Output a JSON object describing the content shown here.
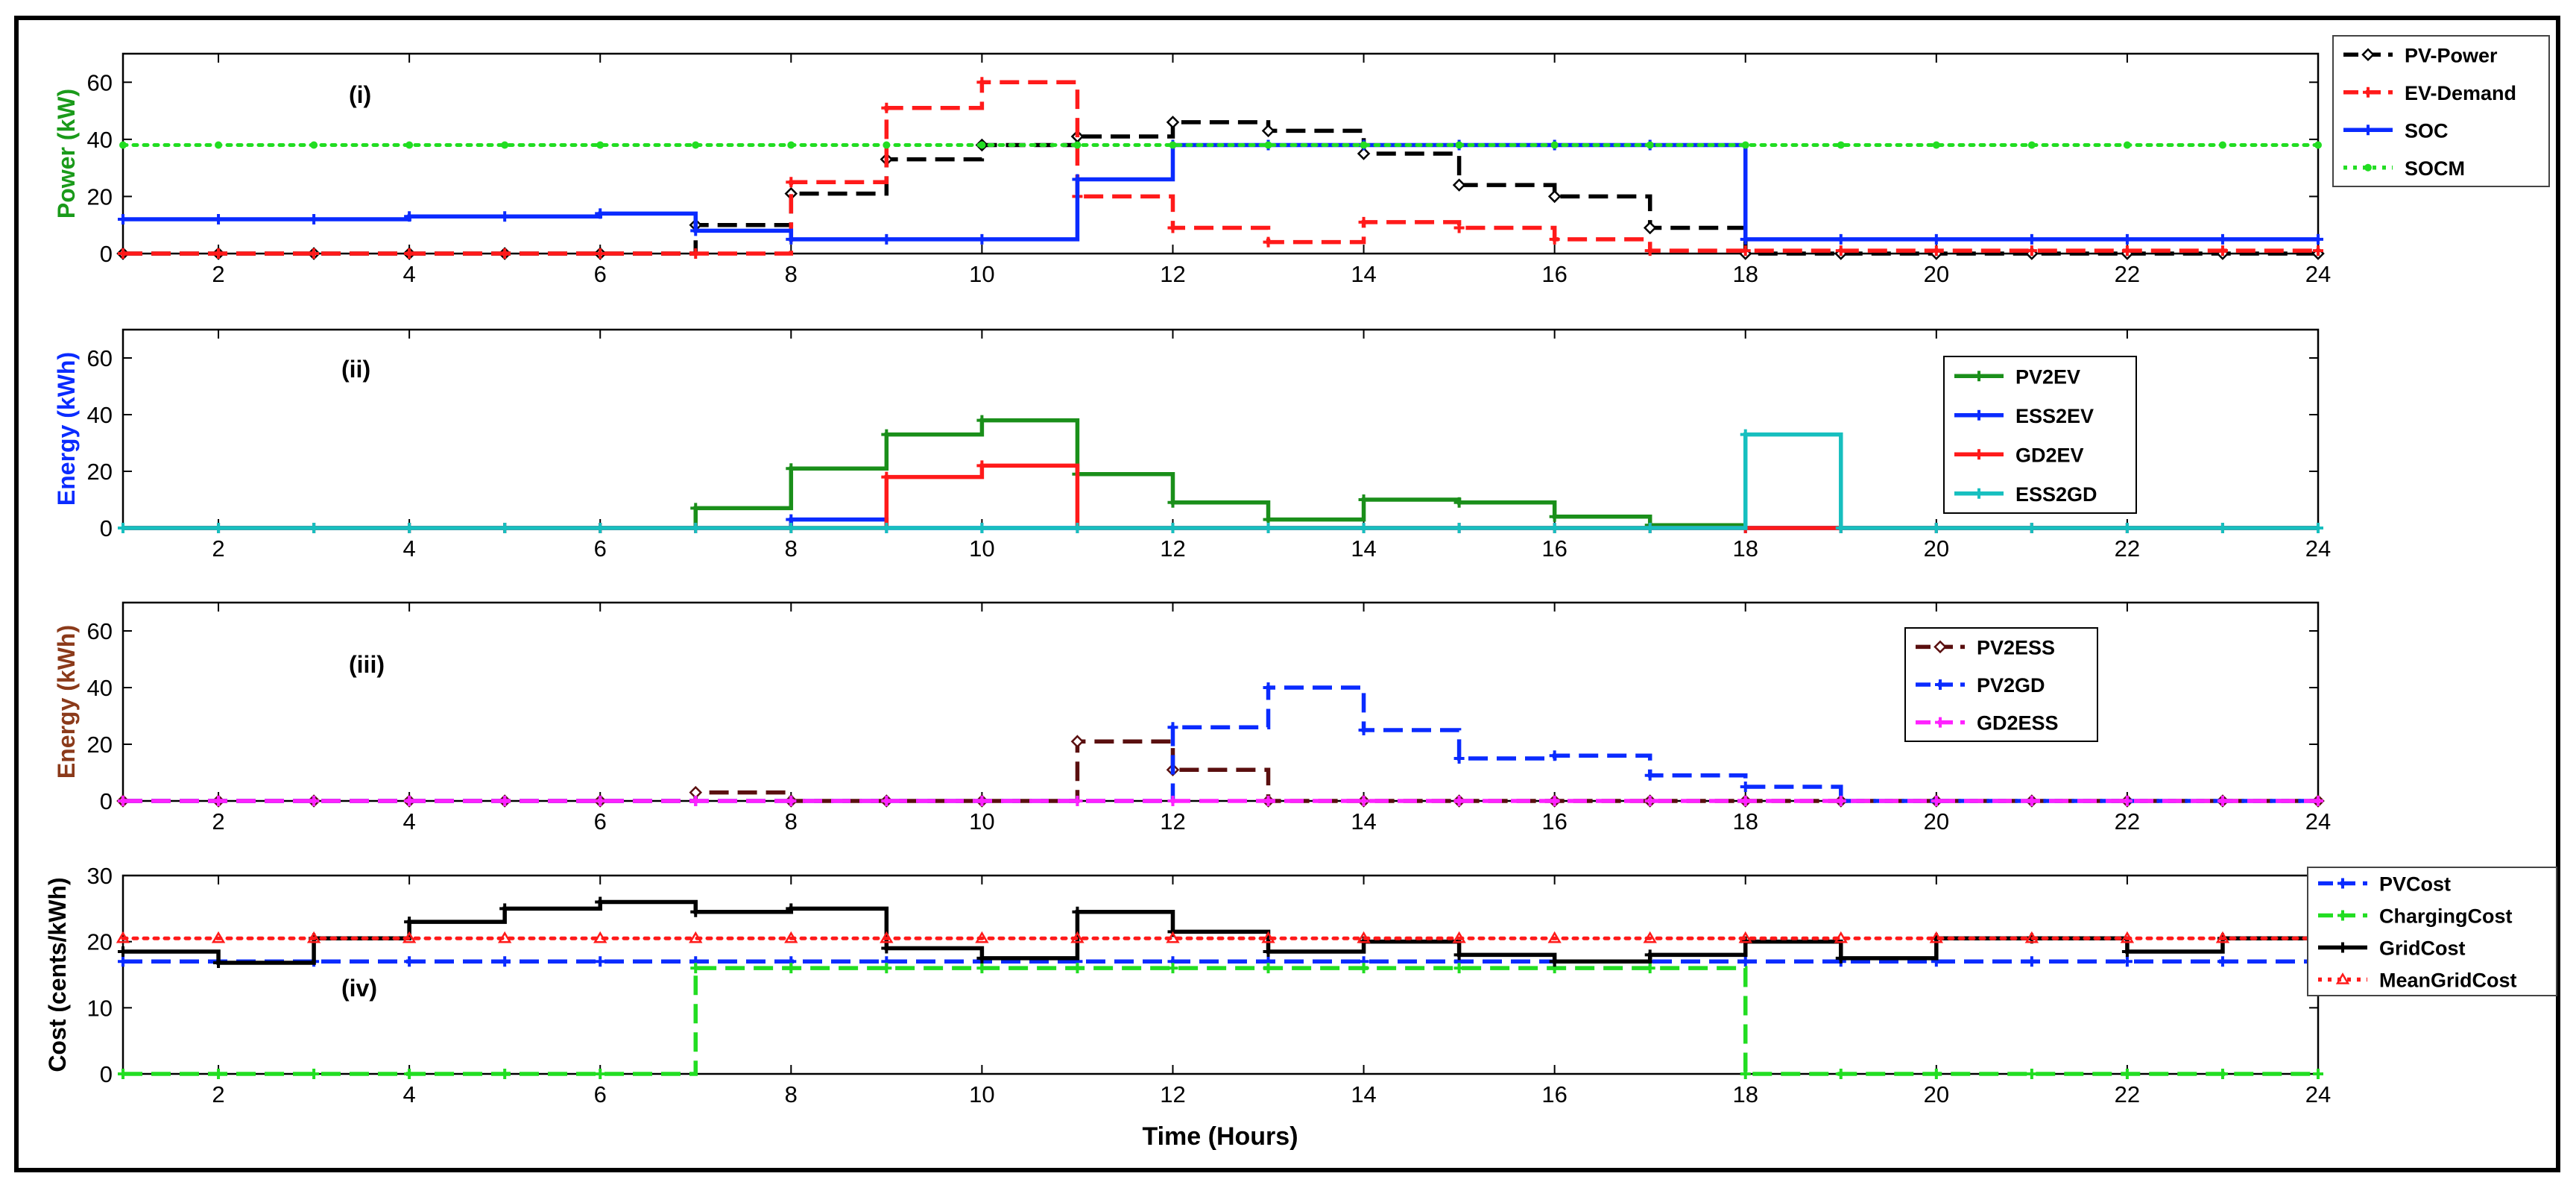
{
  "chart_data": [
    {
      "id": "p1",
      "type": "line",
      "step": true,
      "panel_label": "(i)",
      "ylabel": "Power (kW)",
      "ylabel_color": "#1a9a1a",
      "ylim": [
        0,
        70
      ],
      "yticks": [
        0,
        20,
        40,
        60
      ],
      "xlim": [
        1,
        24
      ],
      "xticks": [
        2,
        4,
        6,
        8,
        10,
        12,
        14,
        16,
        18,
        20,
        22,
        24
      ],
      "legend_position": "top-right-outside",
      "series": [
        {
          "name": "PV-Power",
          "color": "#000000",
          "dash": "dash",
          "marker": "diamond",
          "values": [
            0,
            0,
            0,
            0,
            0,
            0,
            10,
            21,
            33,
            38,
            41,
            46,
            43,
            35,
            24,
            20,
            9,
            0,
            0,
            0,
            0,
            0,
            0,
            0
          ]
        },
        {
          "name": "EV-Demand",
          "color": "#ff1a1a",
          "dash": "dash",
          "marker": "plus",
          "values": [
            0,
            0,
            0,
            0,
            0,
            0,
            0,
            25,
            51,
            60,
            20,
            9,
            4,
            11,
            9,
            5,
            1,
            1,
            1,
            1,
            1,
            1,
            1,
            1
          ]
        },
        {
          "name": "SOC",
          "color": "#0a2bff",
          "dash": "solid",
          "marker": "plus",
          "values": [
            12,
            12,
            12,
            13,
            13,
            14,
            8,
            5,
            5,
            5,
            26,
            38,
            38,
            38,
            38,
            38,
            38,
            5,
            5,
            5,
            5,
            5,
            5,
            5
          ]
        },
        {
          "name": "SOCM",
          "color": "#22dd22",
          "dash": "dot",
          "marker": "dot",
          "values": [
            38,
            38,
            38,
            38,
            38,
            38,
            38,
            38,
            38,
            38,
            38,
            38,
            38,
            38,
            38,
            38,
            38,
            38,
            38,
            38,
            38,
            38,
            38,
            38
          ]
        }
      ]
    },
    {
      "id": "p2",
      "type": "line",
      "step": true,
      "panel_label": "(ii)",
      "ylabel": "Energy (kWh)",
      "ylabel_color": "#0a2bff",
      "ylim": [
        0,
        70
      ],
      "yticks": [
        0,
        20,
        40,
        60
      ],
      "xlim": [
        1,
        24
      ],
      "xticks": [
        2,
        4,
        6,
        8,
        10,
        12,
        14,
        16,
        18,
        20,
        22,
        24
      ],
      "legend_position": "upper-right-inside",
      "series": [
        {
          "name": "PV2EV",
          "color": "#1a8f1a",
          "dash": "solid",
          "marker": "plus",
          "values": [
            0,
            0,
            0,
            0,
            0,
            0,
            7,
            21,
            33,
            38,
            19,
            9,
            3,
            10,
            9,
            4,
            1,
            0,
            0,
            0,
            0,
            0,
            0,
            0
          ]
        },
        {
          "name": "ESS2EV",
          "color": "#0a2bff",
          "dash": "solid",
          "marker": "plus",
          "values": [
            0,
            0,
            0,
            0,
            0,
            0,
            0,
            3,
            0,
            0,
            0,
            0,
            0,
            0,
            0,
            0,
            0,
            0,
            0,
            0,
            0,
            0,
            0,
            0
          ]
        },
        {
          "name": "GD2EV",
          "color": "#ff1a1a",
          "dash": "solid",
          "marker": "plus",
          "values": [
            0,
            0,
            0,
            0,
            0,
            0,
            0,
            0,
            18,
            22,
            0,
            0,
            0,
            0,
            0,
            0,
            0,
            0,
            0,
            0,
            0,
            0,
            0,
            0
          ]
        },
        {
          "name": "ESS2GD",
          "color": "#17bfbf",
          "dash": "solid",
          "marker": "plus",
          "values": [
            0,
            0,
            0,
            0,
            0,
            0,
            0,
            0,
            0,
            0,
            0,
            0,
            0,
            0,
            0,
            0,
            0,
            33,
            0,
            0,
            0,
            0,
            0,
            0
          ]
        }
      ]
    },
    {
      "id": "p3",
      "type": "line",
      "step": true,
      "panel_label": "(iii)",
      "ylabel": "Energy (kWh)",
      "ylabel_color": "#8b3a1a",
      "ylim": [
        0,
        70
      ],
      "yticks": [
        0,
        20,
        40,
        60
      ],
      "xlim": [
        1,
        24
      ],
      "xticks": [
        2,
        4,
        6,
        8,
        10,
        12,
        14,
        16,
        18,
        20,
        22,
        24
      ],
      "legend_position": "upper-right-inside",
      "series": [
        {
          "name": "PV2ESS",
          "color": "#5a0f0f",
          "dash": "dash",
          "marker": "diamond",
          "values": [
            0,
            0,
            0,
            0,
            0,
            0,
            3,
            0,
            0,
            0,
            21,
            11,
            0,
            0,
            0,
            0,
            0,
            0,
            0,
            0,
            0,
            0,
            0,
            0
          ]
        },
        {
          "name": "PV2GD",
          "color": "#0a2bff",
          "dash": "dash",
          "marker": "plus",
          "values": [
            0,
            0,
            0,
            0,
            0,
            0,
            0,
            0,
            0,
            0,
            0,
            26,
            40,
            25,
            15,
            16,
            9,
            5,
            0,
            0,
            0,
            0,
            0,
            0
          ]
        },
        {
          "name": "GD2ESS",
          "color": "#ff22ff",
          "dash": "dash",
          "marker": "plus",
          "values": [
            0,
            0,
            0,
            0,
            0,
            0,
            0,
            0,
            0,
            0,
            0,
            0,
            0,
            0,
            0,
            0,
            0,
            0,
            0,
            0,
            0,
            0,
            0,
            0
          ]
        }
      ]
    },
    {
      "id": "p4",
      "type": "line",
      "step": true,
      "panel_label": "(iv)",
      "ylabel": "Cost (cents/kWh)",
      "ylabel_color": "#000000",
      "xlabel": "Time (Hours)",
      "ylim": [
        0,
        30
      ],
      "yticks": [
        0,
        10,
        20,
        30
      ],
      "xlim": [
        1,
        24
      ],
      "xticks": [
        2,
        4,
        6,
        8,
        10,
        12,
        14,
        16,
        18,
        20,
        22,
        24
      ],
      "legend_position": "top-right-outside",
      "series": [
        {
          "name": "PVCost",
          "color": "#0a2bff",
          "dash": "dash",
          "marker": "plus",
          "values": [
            17,
            17,
            17,
            17,
            17,
            17,
            17,
            17,
            17,
            17,
            17,
            17,
            17,
            17,
            17,
            17,
            17,
            17,
            17,
            17,
            17,
            17,
            17,
            17
          ]
        },
        {
          "name": "ChargingCost",
          "color": "#22dd22",
          "dash": "dash",
          "marker": "plus",
          "values": [
            0,
            0,
            0,
            0,
            0,
            0,
            16,
            16,
            16,
            16,
            16,
            16,
            16,
            16,
            16,
            16,
            16,
            0,
            0,
            0,
            0,
            0,
            0,
            0
          ]
        },
        {
          "name": "GridCost",
          "color": "#000000",
          "dash": "solid",
          "marker": "plus",
          "values": [
            18.5,
            16.8,
            20.5,
            23,
            25,
            26,
            24.5,
            25,
            19,
            17.5,
            24.5,
            21.5,
            18.5,
            20,
            18,
            17,
            18,
            20,
            17.5,
            20.5,
            20.5,
            18.5,
            20.5,
            20.5
          ]
        },
        {
          "name": "MeanGridCost",
          "color": "#ff1a1a",
          "dash": "dot",
          "marker": "triangle",
          "values": [
            20.5,
            20.5,
            20.5,
            20.5,
            20.5,
            20.5,
            20.5,
            20.5,
            20.5,
            20.5,
            20.5,
            20.5,
            20.5,
            20.5,
            20.5,
            20.5,
            20.5,
            20.5,
            20.5,
            20.5,
            20.5,
            20.5,
            20.5,
            20.5
          ]
        }
      ]
    }
  ]
}
